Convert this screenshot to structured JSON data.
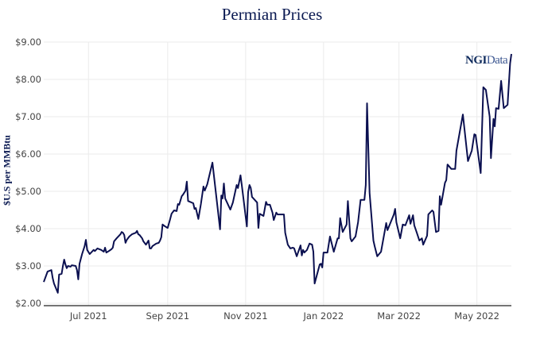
{
  "chart_data": {
    "type": "line",
    "title": "Permian Prices",
    "xlabel": "",
    "ylabel": "$U.S per MMBtu",
    "x_unit": "days since 2021-05-27",
    "x_start_date": "2021-05-27",
    "xlim": [
      0,
      366
    ],
    "ylim": [
      2.0,
      9.0
    ],
    "grid": true,
    "yticks": [
      {
        "value": 2,
        "label": "$2.00"
      },
      {
        "value": 3,
        "label": "$3.00"
      },
      {
        "value": 4,
        "label": "$4.00"
      },
      {
        "value": 5,
        "label": "$5.00"
      },
      {
        "value": 6,
        "label": "$6.00"
      },
      {
        "value": 7,
        "label": "$7.00"
      },
      {
        "value": 8,
        "label": "$8.00"
      },
      {
        "value": 9,
        "label": "$9.00"
      }
    ],
    "xticks": [
      {
        "value": 35,
        "label": "Jul 2021"
      },
      {
        "value": 97,
        "label": "Sep 2021"
      },
      {
        "value": 158,
        "label": "Nov 2021"
      },
      {
        "value": 219,
        "label": "Jan 2022"
      },
      {
        "value": 278,
        "label": "Mar 2022"
      },
      {
        "value": 339,
        "label": "May 2022"
      }
    ],
    "series": [
      {
        "name": "Permian",
        "color": "#0b1050",
        "x": [
          0,
          3,
          6,
          7,
          8,
          11,
          12,
          14,
          15,
          16,
          17,
          18,
          19,
          21,
          22,
          25,
          26,
          27,
          28,
          30,
          32,
          33,
          34,
          36,
          39,
          40,
          42,
          45,
          47,
          48,
          49,
          51,
          53,
          54,
          55,
          57,
          60,
          61,
          62,
          63,
          64,
          65,
          67,
          69,
          72,
          73,
          74,
          75,
          77,
          78,
          80,
          82,
          83,
          84,
          85,
          88,
          90,
          91,
          92,
          93,
          95,
          97,
          99,
          100,
          102,
          104,
          105,
          106,
          108,
          109,
          111,
          112,
          113,
          117,
          118,
          119,
          121,
          123,
          125,
          126,
          128,
          132,
          138,
          139,
          140,
          141,
          142,
          146,
          148,
          151,
          152,
          154,
          155,
          159,
          160,
          161,
          162,
          163,
          167,
          168,
          169,
          172,
          174,
          175,
          177,
          179,
          180,
          182,
          183,
          188,
          189,
          191,
          193,
          195,
          196,
          198,
          201,
          202,
          203,
          204,
          206,
          208,
          210,
          211,
          212,
          216,
          217,
          218,
          219,
          222,
          224,
          227,
          230,
          231,
          232,
          234,
          237,
          238,
          240,
          241,
          244,
          246,
          248,
          251,
          252,
          253,
          255,
          258,
          259,
          261,
          264,
          268,
          269,
          274,
          275,
          276,
          279,
          281,
          283,
          286,
          287,
          289,
          290,
          292,
          294,
          296,
          297,
          300,
          301,
          304,
          305,
          307,
          309,
          310,
          311,
          314,
          315,
          316,
          319,
          322,
          323,
          328,
          332,
          335,
          337,
          338,
          342,
          344,
          346,
          349,
          350,
          352,
          353,
          354,
          356,
          358,
          360,
          363,
          365,
          366
        ],
        "y": [
          2.57,
          2.85,
          2.89,
          2.68,
          2.53,
          2.28,
          2.77,
          2.79,
          3.0,
          3.17,
          3.04,
          2.94,
          3.0,
          2.98,
          3.02,
          3.0,
          2.89,
          2.64,
          3.06,
          3.32,
          3.53,
          3.7,
          3.43,
          3.32,
          3.43,
          3.4,
          3.47,
          3.43,
          3.38,
          3.49,
          3.36,
          3.4,
          3.45,
          3.49,
          3.66,
          3.74,
          3.85,
          3.91,
          3.89,
          3.83,
          3.62,
          3.7,
          3.79,
          3.85,
          3.89,
          3.94,
          3.85,
          3.83,
          3.74,
          3.66,
          3.57,
          3.68,
          3.47,
          3.47,
          3.53,
          3.6,
          3.62,
          3.68,
          3.77,
          4.11,
          4.06,
          4.02,
          4.26,
          4.4,
          4.49,
          4.47,
          4.66,
          4.64,
          4.87,
          4.91,
          5.02,
          5.26,
          4.74,
          4.68,
          4.53,
          4.55,
          4.26,
          4.66,
          5.13,
          5.02,
          5.19,
          5.77,
          3.98,
          4.89,
          4.81,
          5.21,
          4.81,
          4.51,
          4.7,
          5.17,
          5.09,
          5.43,
          5.17,
          4.06,
          4.98,
          5.17,
          5.09,
          4.85,
          4.7,
          4.02,
          4.4,
          4.34,
          4.72,
          4.64,
          4.64,
          4.43,
          4.23,
          4.43,
          4.38,
          4.38,
          3.89,
          3.57,
          3.47,
          3.49,
          3.47,
          3.26,
          3.55,
          3.28,
          3.43,
          3.36,
          3.43,
          3.6,
          3.57,
          3.38,
          2.53,
          3.04,
          3.06,
          2.96,
          3.36,
          3.36,
          3.79,
          3.38,
          3.74,
          3.74,
          4.28,
          3.91,
          4.11,
          4.74,
          3.74,
          3.66,
          3.79,
          4.17,
          4.77,
          4.77,
          5.17,
          7.36,
          4.96,
          3.68,
          3.53,
          3.26,
          3.38,
          4.15,
          3.96,
          4.38,
          4.53,
          4.17,
          3.74,
          4.11,
          4.09,
          4.36,
          4.13,
          4.36,
          4.09,
          3.89,
          3.68,
          3.74,
          3.57,
          3.81,
          4.38,
          4.49,
          4.45,
          3.91,
          3.94,
          4.87,
          4.64,
          5.23,
          5.3,
          5.72,
          5.6,
          5.6,
          6.09,
          7.06,
          5.81,
          6.09,
          6.53,
          6.51,
          5.49,
          7.79,
          7.72,
          7.0,
          5.89,
          6.94,
          6.74,
          7.23,
          7.21,
          7.96,
          7.23,
          7.32,
          8.43,
          8.68
        ]
      }
    ],
    "watermark": {
      "bold": "NGI",
      "light": "Data"
    }
  }
}
